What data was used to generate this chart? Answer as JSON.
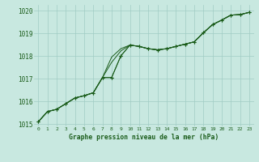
{
  "x": [
    0,
    1,
    2,
    3,
    4,
    5,
    6,
    7,
    8,
    9,
    10,
    11,
    12,
    13,
    14,
    15,
    16,
    17,
    18,
    19,
    20,
    21,
    22,
    23
  ],
  "series": [
    {
      "y": [
        1015.1,
        1015.55,
        1015.65,
        1015.9,
        1016.15,
        1016.25,
        1016.38,
        1017.05,
        1017.05,
        1018.0,
        1018.48,
        1018.42,
        1018.32,
        1018.27,
        1018.32,
        1018.42,
        1018.52,
        1018.62,
        1019.02,
        1019.38,
        1019.58,
        1019.8,
        1019.82,
        1019.92
      ],
      "marker": true
    },
    {
      "y": [
        1015.1,
        1015.55,
        1015.65,
        1015.9,
        1016.15,
        1016.25,
        1016.38,
        1017.05,
        1017.05,
        1018.0,
        1018.48,
        1018.42,
        1018.32,
        1018.27,
        1018.32,
        1018.42,
        1018.52,
        1018.62,
        1019.02,
        1019.38,
        1019.58,
        1019.8,
        1019.82,
        1019.92
      ],
      "marker": true
    },
    {
      "y": [
        1015.1,
        1015.55,
        1015.65,
        1015.9,
        1016.15,
        1016.25,
        1016.38,
        1017.05,
        1017.72,
        1018.22,
        1018.48,
        1018.42,
        1018.32,
        1018.27,
        1018.32,
        1018.42,
        1018.52,
        1018.62,
        1019.02,
        1019.38,
        1019.58,
        1019.8,
        1019.82,
        1019.92
      ],
      "marker": false
    },
    {
      "y": [
        1015.1,
        1015.55,
        1015.65,
        1015.9,
        1016.15,
        1016.25,
        1016.38,
        1017.05,
        1017.95,
        1018.32,
        1018.48,
        1018.42,
        1018.32,
        1018.27,
        1018.32,
        1018.42,
        1018.52,
        1018.62,
        1019.02,
        1019.38,
        1019.58,
        1019.8,
        1019.82,
        1019.92
      ],
      "marker": false
    }
  ],
  "bg_color": "#c8e8e0",
  "grid_color": "#a0ccc4",
  "line_color": "#1a5c1a",
  "xlabel": "Graphe pression niveau de la mer (hPa)",
  "ylim": [
    1014.9,
    1020.25
  ],
  "yticks": [
    1015,
    1016,
    1017,
    1018,
    1019,
    1020
  ],
  "xticks": [
    0,
    1,
    2,
    3,
    4,
    5,
    6,
    7,
    8,
    9,
    10,
    11,
    12,
    13,
    14,
    15,
    16,
    17,
    18,
    19,
    20,
    21,
    22,
    23
  ],
  "figsize": [
    3.2,
    2.0
  ],
  "dpi": 100
}
